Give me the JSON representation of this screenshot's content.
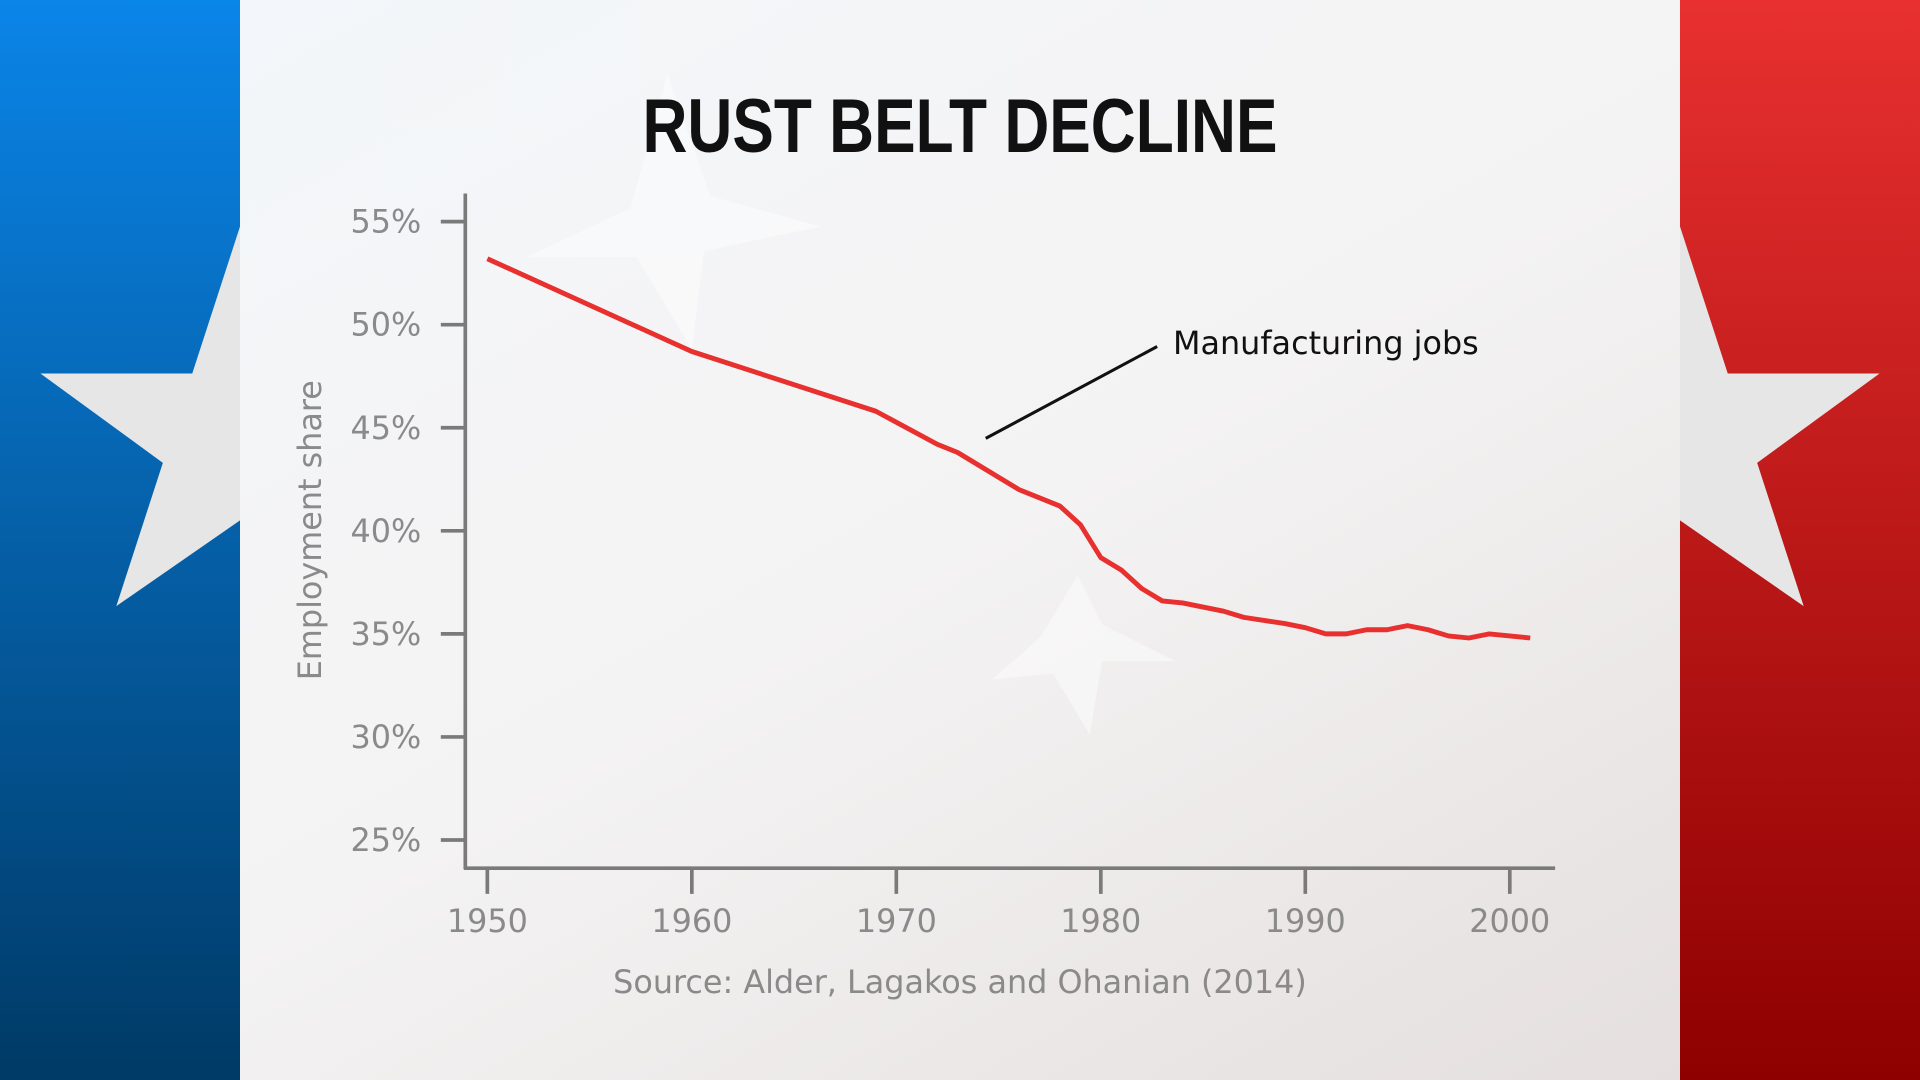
{
  "chart_data": {
    "type": "line",
    "title": "RUST BELT DECLINE",
    "xlabel": "",
    "ylabel": "Employment share",
    "source": "Source: Alder, Lagakos and Ohanian (2014)",
    "xlim": [
      1949,
      2002
    ],
    "ylim": [
      24,
      56
    ],
    "x_ticks": [
      1950,
      1960,
      1970,
      1980,
      1990,
      2000
    ],
    "x_tick_labels": [
      "1950",
      "1960",
      "1970",
      "1980",
      "1990",
      "2000"
    ],
    "y_ticks": [
      25,
      30,
      35,
      40,
      45,
      50,
      55
    ],
    "y_tick_labels": [
      "25%",
      "30%",
      "35%",
      "40%",
      "45%",
      "50%",
      "55%"
    ],
    "grid": false,
    "series": [
      {
        "name": "Manufacturing jobs",
        "color": "#e8302f",
        "x": [
          1950,
          1960,
          1969,
          1972,
          1973,
          1975,
          1976,
          1978,
          1979,
          1980,
          1981,
          1982,
          1983,
          1984,
          1986,
          1987,
          1989,
          1990,
          1991,
          1992,
          1993,
          1994,
          1995,
          1996,
          1997,
          1998,
          1999,
          2001
        ],
        "y": [
          53.2,
          48.7,
          45.8,
          44.2,
          43.8,
          42.6,
          42.0,
          41.2,
          40.3,
          38.7,
          38.1,
          37.2,
          36.6,
          36.5,
          36.1,
          35.8,
          35.5,
          35.3,
          35.0,
          35.0,
          35.2,
          35.2,
          35.4,
          35.2,
          34.9,
          34.8,
          35.0,
          34.8
        ]
      }
    ],
    "annotation": "Manufacturing jobs"
  },
  "colors": {
    "blue_panel": "#0a6fd0",
    "red_panel": "#d42323",
    "axis": "#7a7a7a"
  }
}
